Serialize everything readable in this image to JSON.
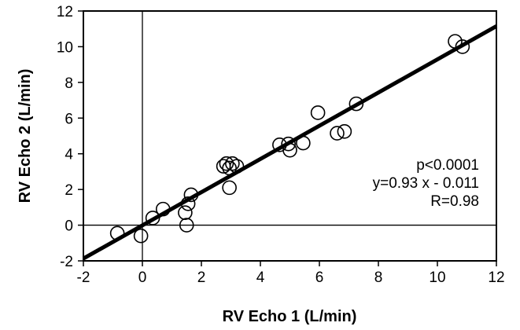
{
  "chart_data": {
    "type": "scatter",
    "xlabel": "RV Echo 1 (L/min)",
    "ylabel": "RV Echo 2 (L/min)",
    "xlim": [
      -2,
      12
    ],
    "ylim": [
      -2,
      12
    ],
    "xticks": [
      "-2",
      "0",
      "2",
      "4",
      "6",
      "8",
      "10",
      "12"
    ],
    "yticks": [
      "-2",
      "0",
      "2",
      "4",
      "6",
      "8",
      "10",
      "12"
    ],
    "grid": false,
    "zero_lines": true,
    "points": [
      {
        "x": -0.85,
        "y": -0.45
      },
      {
        "x": -0.05,
        "y": -0.6
      },
      {
        "x": 0.35,
        "y": 0.4
      },
      {
        "x": 0.7,
        "y": 0.9
      },
      {
        "x": 1.45,
        "y": 0.7
      },
      {
        "x": 1.5,
        "y": 0.0
      },
      {
        "x": 1.55,
        "y": 1.2
      },
      {
        "x": 1.65,
        "y": 1.7
      },
      {
        "x": 2.75,
        "y": 3.3
      },
      {
        "x": 2.85,
        "y": 3.45
      },
      {
        "x": 2.95,
        "y": 3.2
      },
      {
        "x": 3.05,
        "y": 3.45
      },
      {
        "x": 3.2,
        "y": 3.3
      },
      {
        "x": 2.95,
        "y": 2.1
      },
      {
        "x": 4.65,
        "y": 4.5
      },
      {
        "x": 4.95,
        "y": 4.55
      },
      {
        "x": 5.0,
        "y": 4.2
      },
      {
        "x": 5.45,
        "y": 4.6
      },
      {
        "x": 5.95,
        "y": 6.3
      },
      {
        "x": 6.6,
        "y": 5.15
      },
      {
        "x": 6.85,
        "y": 5.25
      },
      {
        "x": 7.25,
        "y": 6.8
      },
      {
        "x": 10.6,
        "y": 10.3
      },
      {
        "x": 10.85,
        "y": 10.0
      }
    ],
    "fit": {
      "slope": 0.93,
      "intercept": -0.011,
      "x_range": [
        -2,
        12
      ]
    },
    "annotations": [
      "p<0.0001",
      "y=0.93 x - 0.011",
      "R=0.98"
    ]
  }
}
